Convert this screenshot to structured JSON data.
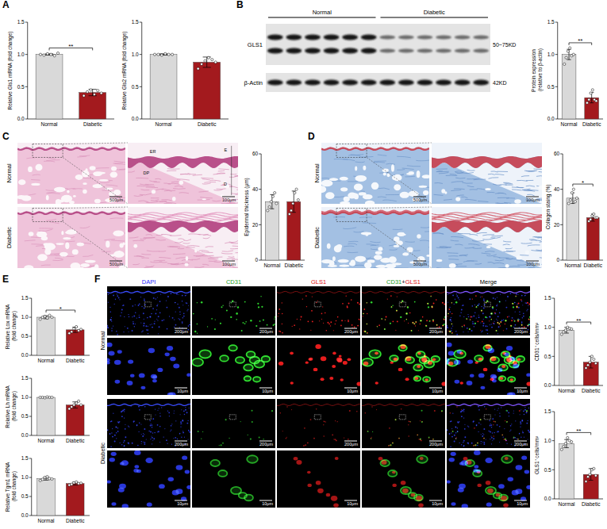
{
  "panels": [
    "A",
    "B",
    "C",
    "D",
    "E",
    "F"
  ],
  "chart_data": [
    {
      "type": "bar",
      "ylabel": "Relative Gls1 mRNA (fold change)",
      "categories": [
        "Normal",
        "Diabetic"
      ],
      "values": [
        1.0,
        0.41
      ],
      "errors": [
        0.01,
        0.05
      ],
      "points": [
        [
          1.0,
          0.99,
          1.01,
          1.0,
          0.98,
          1.02
        ],
        [
          0.36,
          0.42,
          0.45,
          0.38,
          0.44,
          0.4
        ]
      ],
      "colors": [
        "#d9d9d9",
        "#a31a1e"
      ],
      "ylim": [
        0,
        1.5
      ],
      "yticks": [
        {
          "value": 0,
          "label": "0.0"
        },
        0.5,
        {
          "value": 1,
          "label": "1.0"
        },
        1.5
      ],
      "annotation": "**"
    },
    {
      "type": "bar",
      "ylabel": "Relative Gls2 mRNA (fold change)",
      "categories": [
        "Normal",
        "Diabetic"
      ],
      "values": [
        1.0,
        0.88
      ],
      "errors": [
        0.01,
        0.08
      ],
      "points": [
        [
          1.0,
          1.0,
          0.99,
          1.01,
          1.0,
          1.0
        ],
        [
          0.78,
          0.85,
          0.9,
          0.95,
          0.92,
          0.88
        ]
      ],
      "colors": [
        "#d9d9d9",
        "#a31a1e"
      ],
      "ylim": [
        0,
        1.5
      ],
      "yticks": [
        {
          "value": 0,
          "label": "0.0"
        },
        0.5,
        {
          "value": 1,
          "label": "1.0"
        },
        1.5
      ]
    },
    {
      "type": "bar",
      "ylabel": "Protein expression (relative to β-actin)",
      "categories": [
        "Normal",
        "Diabetic"
      ],
      "values": [
        1.0,
        0.33
      ],
      "errors": [
        0.08,
        0.08
      ],
      "points": [
        [
          0.85,
          0.95,
          1.05,
          1.1,
          0.98,
          1.0
        ],
        [
          0.25,
          0.3,
          0.4,
          0.45,
          0.3,
          0.28
        ]
      ],
      "colors": [
        "#d9d9d9",
        "#a31a1e"
      ],
      "ylim": [
        0,
        1.5
      ],
      "yticks": [
        {
          "value": 0,
          "label": "0.0"
        },
        0.5,
        {
          "value": 1,
          "label": "1.0"
        },
        1.5
      ],
      "annotation": "**"
    },
    {
      "type": "bar",
      "ylabel": "Epidermal thickness (μm)",
      "categories": [
        "Normal",
        "Diabetic"
      ],
      "values": [
        33,
        33
      ],
      "errors": [
        4,
        6
      ],
      "points": [
        [
          28,
          30,
          33,
          36,
          38,
          32
        ],
        [
          26,
          28,
          32,
          38,
          40,
          34
        ]
      ],
      "colors": [
        "#d9d9d9",
        "#a31a1e"
      ],
      "ylim": [
        0,
        60
      ],
      "yticks": [
        0,
        20,
        40,
        60
      ]
    },
    {
      "type": "bar",
      "ylabel": "Collagen staing (%)",
      "categories": [
        "Normal",
        "Diabetic"
      ],
      "values": [
        35,
        24
      ],
      "errors": [
        3,
        2
      ],
      "points": [
        [
          32,
          34,
          38,
          40,
          33,
          35
        ],
        [
          22,
          23,
          25,
          26,
          24,
          24
        ]
      ],
      "colors": [
        "#d9d9d9",
        "#a31a1e"
      ],
      "ylim": [
        0,
        60
      ],
      "yticks": [
        0,
        20,
        40,
        60
      ],
      "annotation": "*"
    },
    {
      "type": "bar",
      "ylabel": "Relative Lox mRNA (fold change)",
      "categories": [
        "Normal",
        "Diabetic"
      ],
      "values": [
        1.0,
        0.67
      ],
      "errors": [
        0.04,
        0.07
      ],
      "points": [
        [
          0.95,
          1.0,
          1.02,
          0.98,
          1.05,
          1.0
        ],
        [
          0.58,
          0.62,
          0.7,
          0.75,
          0.65,
          0.68
        ]
      ],
      "colors": [
        "#d9d9d9",
        "#a31a1e"
      ],
      "ylim": [
        0,
        1.5
      ],
      "yticks": [
        {
          "value": 0,
          "label": "0.0"
        },
        0.5,
        {
          "value": 1,
          "label": "1.0"
        },
        1.5
      ],
      "annotation": "*"
    },
    {
      "type": "bar",
      "ylabel": "Relative Lh mRNA (fold change)",
      "categories": [
        "Normal",
        "Diabetic"
      ],
      "values": [
        1.0,
        0.8
      ],
      "errors": [
        0.01,
        0.08
      ],
      "points": [
        [
          1.0,
          1.0,
          0.99,
          1.01,
          1.0,
          1.0
        ],
        [
          0.7,
          0.75,
          0.8,
          0.85,
          0.9,
          0.8
        ]
      ],
      "colors": [
        "#d9d9d9",
        "#a31a1e"
      ],
      "ylim": [
        0,
        1.5
      ],
      "yticks": [
        {
          "value": 0,
          "label": "0.0"
        },
        0.5,
        {
          "value": 1,
          "label": "1.0"
        },
        1.5
      ]
    },
    {
      "type": "bar",
      "ylabel": "Relative Tgm1 mRNA (fold change)",
      "categories": [
        "Normal",
        "Diabetic"
      ],
      "values": [
        0.97,
        0.84
      ],
      "errors": [
        0.04,
        0.04
      ],
      "points": [
        [
          0.92,
          0.95,
          1.0,
          1.02,
          0.97,
          0.96
        ],
        [
          0.8,
          0.82,
          0.86,
          0.88,
          0.84,
          0.85
        ]
      ],
      "colors": [
        "#d9d9d9",
        "#a31a1e"
      ],
      "ylim": [
        0,
        1.5
      ],
      "yticks": [
        {
          "value": 0,
          "label": "0.0"
        },
        0.5,
        {
          "value": 1,
          "label": "1.0"
        },
        1.5
      ]
    },
    {
      "type": "bar",
      "ylabel": "CD31⁺ cells/mm²",
      "categories": [
        "Normal",
        "Diabetic"
      ],
      "values": [
        0.95,
        0.4
      ],
      "errors": [
        0.05,
        0.1
      ],
      "points": [
        [
          0.88,
          0.92,
          0.95,
          1.0,
          0.98,
          0.97
        ],
        [
          0.3,
          0.35,
          0.4,
          0.5,
          0.45,
          0.38
        ]
      ],
      "colors": [
        "#d9d9d9",
        "#a31a1e"
      ],
      "ylim": [
        0,
        1.5
      ],
      "yticks": [
        {
          "value": 0,
          "label": "0.0"
        },
        0.5,
        {
          "value": 1,
          "label": "1.0"
        },
        1.5
      ],
      "annotation": "**"
    },
    {
      "type": "bar",
      "ylabel": "GLS1⁺ cells/mm²",
      "categories": [
        "Normal",
        "Diabetic"
      ],
      "values": [
        0.95,
        0.42
      ],
      "errors": [
        0.07,
        0.1
      ],
      "points": [
        [
          0.85,
          0.9,
          0.95,
          1.05,
          1.0,
          0.98
        ],
        [
          0.3,
          0.38,
          0.42,
          0.5,
          0.52,
          0.4
        ]
      ],
      "colors": [
        "#d9d9d9",
        "#a31a1e"
      ],
      "ylim": [
        0,
        1.5
      ],
      "yticks": [
        {
          "value": 0,
          "label": "0.0"
        },
        0.5,
        {
          "value": 1,
          "label": "1.0"
        },
        1.5
      ],
      "annotation": "**"
    }
  ],
  "blot": {
    "groups": [
      "Normal",
      "Diabetic"
    ],
    "lanes_per_group": 6,
    "bands": [
      {
        "label": "GLS1",
        "size": "50~75KD"
      },
      {
        "label": "β-Actin",
        "size": "42KD"
      }
    ]
  },
  "histology": [
    {
      "rows": [
        "Normal",
        "Diabetic"
      ],
      "scale_bars": [
        "500μm",
        "100μm"
      ],
      "layer_labels": [
        "ER",
        "E",
        "DP",
        "D"
      ]
    },
    {
      "rows": [
        "Normal",
        "Diabetic"
      ],
      "scale_bars": [
        "500μm",
        "100μm"
      ]
    }
  ],
  "immunofluorescence": {
    "columns": [
      "DAPI",
      "CD31",
      "GLS1",
      "CD31+GLS1",
      "Merge"
    ],
    "rows": [
      "Normal",
      "Diabetic"
    ],
    "scale_bars": [
      "200μm",
      "10μm"
    ]
  }
}
